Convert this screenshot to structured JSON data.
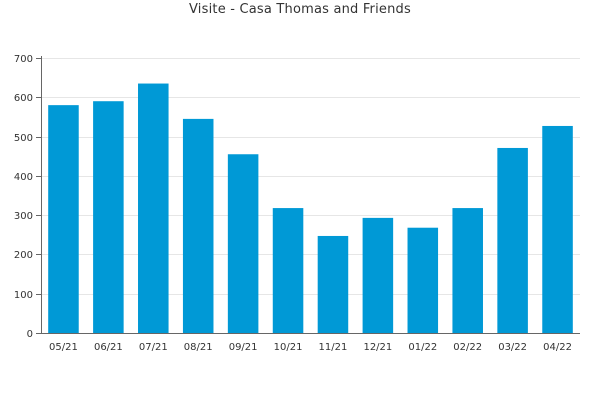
{
  "chart_data": {
    "type": "bar",
    "title": "Visite - Casa Thomas and Friends",
    "xlabel": "",
    "ylabel": "",
    "categories": [
      "05/21",
      "06/21",
      "07/21",
      "08/21",
      "09/21",
      "10/21",
      "11/21",
      "12/21",
      "01/22",
      "02/22",
      "03/22",
      "04/22"
    ],
    "values": [
      580,
      590,
      635,
      545,
      455,
      318,
      247,
      293,
      268,
      318,
      471,
      527
    ],
    "ylim": [
      0,
      700
    ],
    "yticks": [
      0,
      100,
      200,
      300,
      400,
      500,
      600,
      700
    ],
    "grid": true,
    "legend": "none",
    "bar_color": "#0099d6",
    "axis_color": "#666666",
    "grid_color": "#e6e6e6"
  }
}
